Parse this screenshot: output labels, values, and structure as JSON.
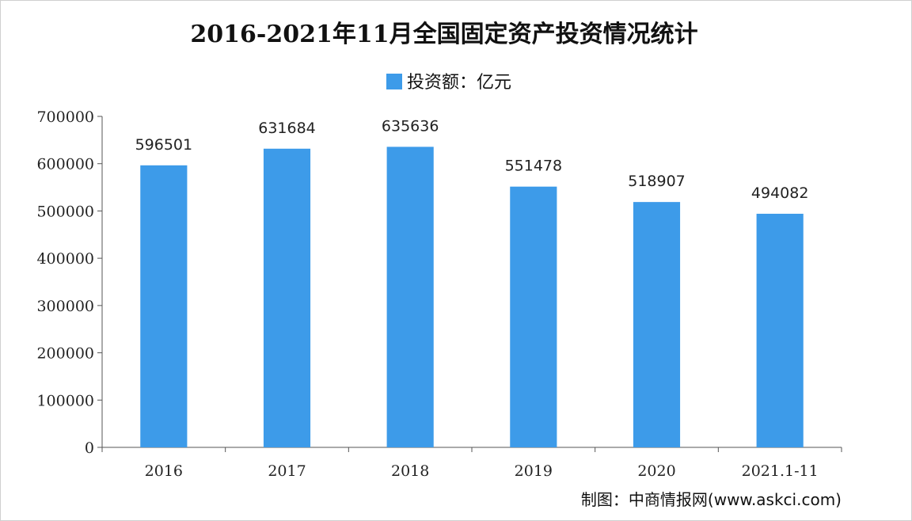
{
  "chart_data": {
    "type": "bar",
    "title": "2016-2021年11月全国固定资产投资情况统计",
    "categories": [
      "2016",
      "2017",
      "2018",
      "2019",
      "2020",
      "2021.1-11"
    ],
    "series": [
      {
        "name": "投资额：亿元",
        "values": [
          596501,
          631684,
          635636,
          551478,
          518907,
          494082
        ],
        "color": "#3d9be9"
      }
    ],
    "ylim": [
      0,
      700000
    ],
    "yticks": [
      0,
      100000,
      200000,
      300000,
      400000,
      500000,
      600000,
      700000
    ],
    "grid": false,
    "legend": "top-center"
  },
  "credit": "制图：中商情报网(www.askci.com)",
  "colors": {
    "bar": "#3d9be9",
    "axis": "#555555",
    "text": "#111111"
  }
}
